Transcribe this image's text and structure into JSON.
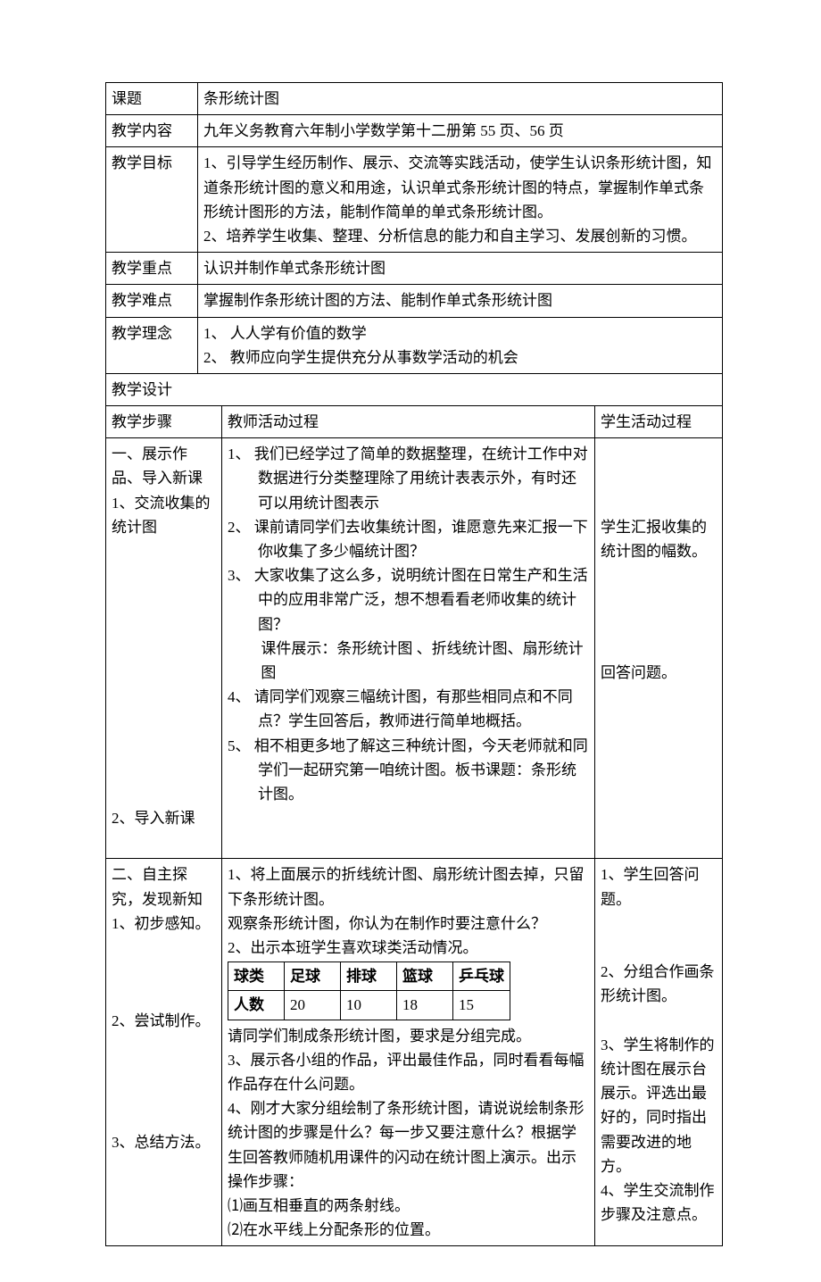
{
  "labels": {
    "topic": "课题",
    "content": "教学内容",
    "goal": "教学目标",
    "focus": "教学重点",
    "difficulty": "教学难点",
    "idea": "教学理念",
    "design": "教学设计",
    "steps": "教学步骤",
    "teacher": "教师活动过程",
    "student": "学生活动过程"
  },
  "values": {
    "topic": "条形统计图",
    "content": "九年义务教育六年制小学数学第十二册第 55 页、56 页",
    "goal_l1": "1、引导学生经历制作、展示、交流等实践活动，使学生认识条形统计图，知道条形统计图的意义和用途，认识单式条形统计图的特点，掌握制作单式条形统计图形的方法，能制作简单的单式条形统计图。",
    "goal_l2": "2、培养学生收集、整理、分析信息的能力和自主学习、发展创新的习惯。",
    "focus": "认识并制作单式条形统计图",
    "difficulty": "掌握制作条形统计图的方法、能制作单式条形统计图",
    "idea_1": "1、 人人学有价值的数学",
    "idea_2": "2、 教师应向学生提供充分从事数学活动的机会"
  },
  "section1": {
    "step_a": "一、展示作品、导入新课",
    "step_b": "1、交流收集的统计图",
    "step_c": "2、导入新课",
    "t1": "1、 我们已经学过了简单的数据整理，在统计工作中对数据进行分类整理除了用统计表表示外，有时还可以用统计图表示",
    "t2": "2、 课前请同学们去收集统计图，谁愿意先来汇报一下你收集了多少幅统计图？",
    "t3": "3、 大家收集了这么多，说明统计图在日常生产和生活中的应用非常广泛，想不想看看老师收集的统计图？",
    "t3b": "课件展示：条形统计图 、折线统计图、扇形统计图",
    "t4": "4、 请同学们观察三幅统计图，有那些相同点和不同点？学生回答后，教师进行简单地概括。",
    "t5": "5、 相不相更多地了解这三种统计图，今天老师就和同学们一起研究第一咱统计图。板书课题：条形统计图。",
    "s1": "学生汇报收集的统计图的幅数。",
    "s2": "回答问题。"
  },
  "section2": {
    "step_a": "二、自主探究，发现新知",
    "step_b": "1、初步感知。",
    "step_c": "2、尝试制作。",
    "step_d": "3、总结方法。",
    "t1": "1、将上面展示的折线统计图、扇形统计图去掉，只留下条形统计图。",
    "t1b": "观察条形统计图，你认为在制作时要注意什么？",
    "t2": "2、出示本班学生喜欢球类活动情况。",
    "table": {
      "header": [
        "球类",
        "足球",
        "排球",
        "篮球",
        "乒乓球"
      ],
      "row": [
        "人数",
        "20",
        "10",
        "18",
        "15"
      ]
    },
    "t2b": "请同学们制成条形统计图，要求是分组完成。",
    "t3": "3、展示各小组的作品，评出最佳作品，同时看看每幅作品存在什么问题。",
    "t4": "4、刚才大家分组绘制了条形统计图，请说说绘制条形统计图的步骤是什么？每一步又要注意什么？根据学生回答教师随机用课件的闪动在统计图上演示。出示操作步骤：",
    "t4a": "⑴画互相垂直的两条射线。",
    "t4b": "⑵在水平线上分配条形的位置。",
    "s1": "1、学生回答问题。",
    "s2": "2、分组合作画条形统计图。",
    "s3": "3、学生将制作的统计图在展示台展示。评选出最好的，同时指出需要改进的地方。",
    "s4": "4、学生交流制作步骤及注意点。"
  }
}
